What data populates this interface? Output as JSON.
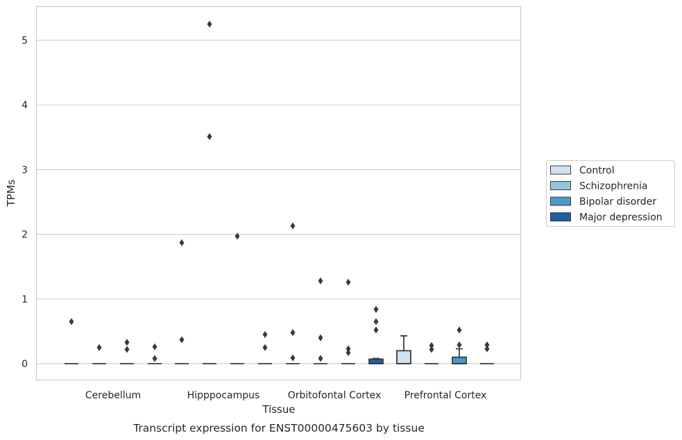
{
  "chart_data": {
    "type": "box",
    "title": "",
    "caption": "Transcript expression for ENST00000475603 by tissue",
    "xlabel": "Tissue",
    "ylabel": "TPMs",
    "ylim": [
      -0.25,
      5.5
    ],
    "yticks": [
      0,
      1,
      2,
      3,
      4,
      5
    ],
    "grid": true,
    "legend_position": "right",
    "categories": [
      "Cerebellum",
      "Hipppocampus",
      "Orbitofontal Cortex",
      "Prefrontal Cortex"
    ],
    "series": [
      {
        "name": "Control",
        "color": "#cfe1f2",
        "boxes": [
          {
            "q1": 0,
            "median": 0,
            "q3": 0,
            "whisker_low": 0,
            "whisker_high": 0,
            "outliers": [
              0.65
            ]
          },
          {
            "q1": 0,
            "median": 0,
            "q3": 0,
            "whisker_low": 0,
            "whisker_high": 0,
            "outliers": [
              1.87,
              0.37
            ]
          },
          {
            "q1": 0,
            "median": 0,
            "q3": 0,
            "whisker_low": 0,
            "whisker_high": 0,
            "outliers": [
              2.13,
              0.48,
              0.09
            ]
          },
          {
            "q1": 0,
            "median": 0,
            "q3": 0.2,
            "whisker_low": 0,
            "whisker_high": 0.43,
            "outliers": []
          }
        ]
      },
      {
        "name": "Schizophrenia",
        "color": "#93c4de",
        "boxes": [
          {
            "q1": 0,
            "median": 0,
            "q3": 0,
            "whisker_low": 0,
            "whisker_high": 0,
            "outliers": [
              0.25
            ]
          },
          {
            "q1": 0,
            "median": 0,
            "q3": 0,
            "whisker_low": 0,
            "whisker_high": 0,
            "outliers": [
              5.25,
              3.51
            ]
          },
          {
            "q1": 0,
            "median": 0,
            "q3": 0,
            "whisker_low": 0,
            "whisker_high": 0,
            "outliers": [
              1.28,
              0.4,
              0.08
            ]
          },
          {
            "q1": 0,
            "median": 0,
            "q3": 0,
            "whisker_low": 0,
            "whisker_high": 0,
            "outliers": [
              0.28,
              0.22
            ]
          }
        ]
      },
      {
        "name": "Bipolar disorder",
        "color": "#4b98c9",
        "boxes": [
          {
            "q1": 0,
            "median": 0,
            "q3": 0,
            "whisker_low": 0,
            "whisker_high": 0,
            "outliers": [
              0.33,
              0.22
            ]
          },
          {
            "q1": 0,
            "median": 0,
            "q3": 0,
            "whisker_low": 0,
            "whisker_high": 0,
            "outliers": [
              1.97
            ]
          },
          {
            "q1": 0,
            "median": 0,
            "q3": 0,
            "whisker_low": 0,
            "whisker_high": 0,
            "outliers": [
              1.26,
              0.23,
              0.17
            ]
          },
          {
            "q1": 0,
            "median": 0,
            "q3": 0.1,
            "whisker_low": 0,
            "whisker_high": 0.23,
            "outliers": [
              0.52,
              0.29
            ]
          }
        ]
      },
      {
        "name": "Major depression",
        "color": "#1f5fa3",
        "boxes": [
          {
            "q1": 0,
            "median": 0,
            "q3": 0,
            "whisker_low": 0,
            "whisker_high": 0,
            "outliers": [
              0.26,
              0.08
            ]
          },
          {
            "q1": 0,
            "median": 0,
            "q3": 0,
            "whisker_low": 0,
            "whisker_high": 0,
            "outliers": [
              0.45,
              0.25
            ]
          },
          {
            "q1": 0,
            "median": 0,
            "q3": 0.07,
            "whisker_low": 0,
            "whisker_high": 0.08,
            "outliers": [
              0.84,
              0.65,
              0.52
            ]
          },
          {
            "q1": 0,
            "median": 0,
            "q3": 0,
            "whisker_low": 0,
            "whisker_high": 0,
            "outliers": [
              0.29,
              0.23
            ]
          }
        ]
      }
    ]
  },
  "colors": {
    "grid": "#d0d0d0",
    "frame": "#cccccc",
    "box_edge": "#3a3a3a",
    "outlier": "#3a3a3a"
  }
}
